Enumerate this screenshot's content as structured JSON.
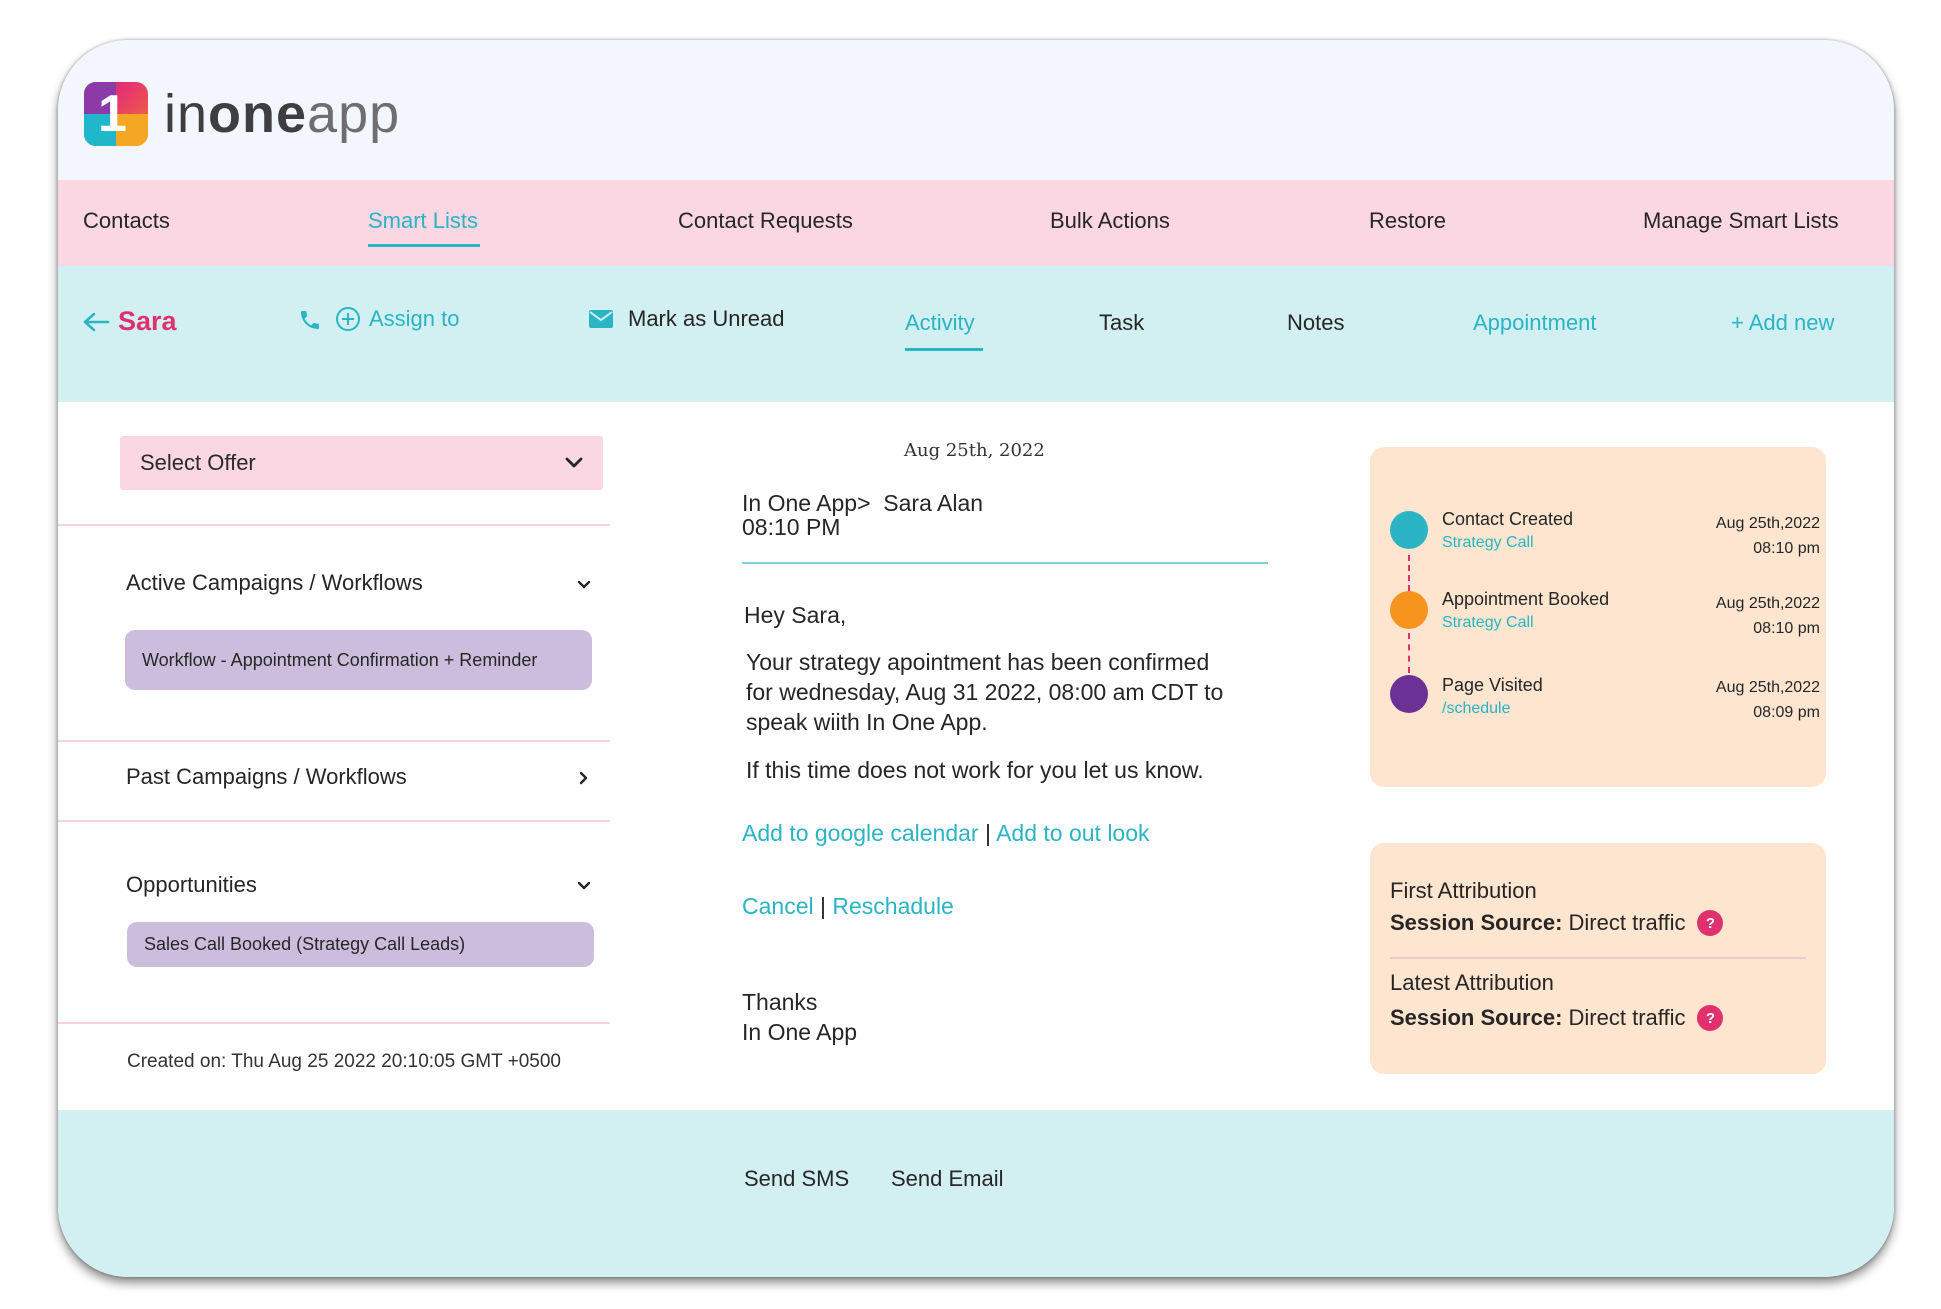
{
  "brand": {
    "logo_number": "1",
    "logo_text_part1": "in",
    "logo_text_part2": "one",
    "logo_text_part3": "app"
  },
  "nav": {
    "items": [
      {
        "label": "Contacts"
      },
      {
        "label": "Smart Lists",
        "active": true
      },
      {
        "label": "Contact Requests"
      },
      {
        "label": "Bulk Actions"
      },
      {
        "label": "Restore"
      },
      {
        "label": "Manage Smart Lists"
      }
    ]
  },
  "contact_bar": {
    "contact_name": "Sara",
    "assign_label": "Assign to",
    "mark_unread_label": "Mark as Unread",
    "tabs": [
      {
        "label": "Activity",
        "active": true
      },
      {
        "label": "Task"
      },
      {
        "label": "Notes"
      },
      {
        "label": "Appointment"
      }
    ],
    "add_new_label": "+ Add new"
  },
  "left_panel": {
    "select_offer": "Select Offer",
    "active_campaigns_title": "Active Campaigns / Workflows",
    "active_workflow": "Workflow - Appointment Confirmation + Reminder",
    "past_campaigns_title": "Past Campaigns / Workflows",
    "opportunities_title": "Opportunities",
    "opportunity": "Sales Call Booked (Strategy Call Leads)",
    "created_on": "Created on: Thu Aug 25 2022 20:10:05 GMT +0500"
  },
  "message": {
    "date": "Aug 25th, 2022",
    "from_to": "In One App>  Sara Alan",
    "time": "08:10 PM",
    "greeting": "Hey Sara,",
    "body_line1": "Your strategy apointment has been confirmed",
    "body_line2": "for wednesday, Aug 31 2022, 08:00 am CDT to",
    "body_line3": "speak wiith In One App.",
    "body_line4": "If this time does not work for you let us know.",
    "google_calendar_link": "Add to google calendar",
    "outlook_link": "Add to out look",
    "cancel_link": "Cancel",
    "reschedule_link": "Reschadule",
    "separator": "|",
    "signoff": "Thanks",
    "signature": "In One App"
  },
  "timeline": [
    {
      "title": "Contact Created",
      "sub": "Strategy Call",
      "date": "Aug 25th,2022",
      "time": "08:10 pm",
      "color": "#2ab4c4"
    },
    {
      "title": "Appointment Booked",
      "sub": "Strategy Call",
      "date": "Aug 25th,2022",
      "time": "08:10 pm",
      "color": "#f7941d"
    },
    {
      "title": "Page Visited",
      "sub": "/schedule",
      "date": "Aug 25th,2022",
      "time": "08:09 pm",
      "color": "#6b3194"
    }
  ],
  "attribution": {
    "first_label": "First Attribution",
    "first_key": "Session Source:",
    "first_value": "Direct traffic",
    "latest_label": "Latest Attribution",
    "latest_key": "Session Source:",
    "latest_value": "Direct traffic",
    "help_icon": "?"
  },
  "footer": {
    "send_sms": "Send SMS",
    "send_email": "Send Email"
  },
  "colors": {
    "accent_teal": "#2ab4c4",
    "accent_pink": "#e0306e",
    "nav_bg": "#fbd6e3",
    "subbar_bg": "#d2f0f2",
    "card_bg": "#fde5cf",
    "pill_bg": "#cdbddc"
  }
}
